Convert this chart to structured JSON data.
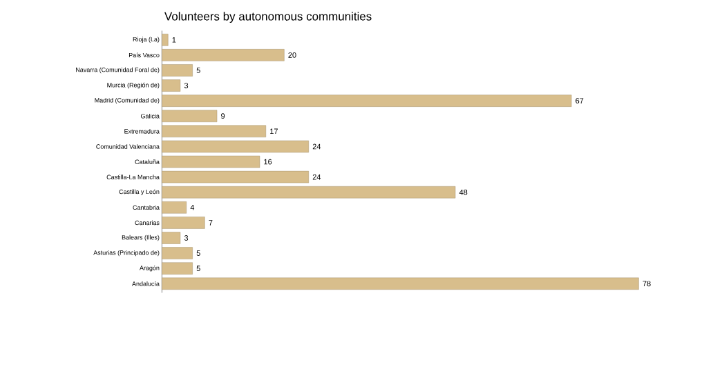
{
  "chart_data": {
    "type": "bar",
    "orientation": "horizontal",
    "title": "Volunteers by autonomous communities",
    "categories": [
      "Rioja (La)",
      "País Vasco",
      "Navarra (Comunidad Foral de)",
      "Murcia (Región de)",
      "Madrid (Comunidad de)",
      "Galicia",
      "Extremadura",
      "Comunidad Valenciana",
      "Cataluña",
      "Castilla-La Mancha",
      "Castilla y León",
      "Cantabria",
      "Canarias",
      "Balears (Illes)",
      "Asturias (Principado de)",
      "Aragón",
      "Andalucía"
    ],
    "values": [
      1,
      20,
      5,
      3,
      67,
      9,
      17,
      24,
      16,
      24,
      48,
      4,
      7,
      3,
      5,
      5,
      78
    ],
    "color": "#d8be8c",
    "data_labels": true
  }
}
